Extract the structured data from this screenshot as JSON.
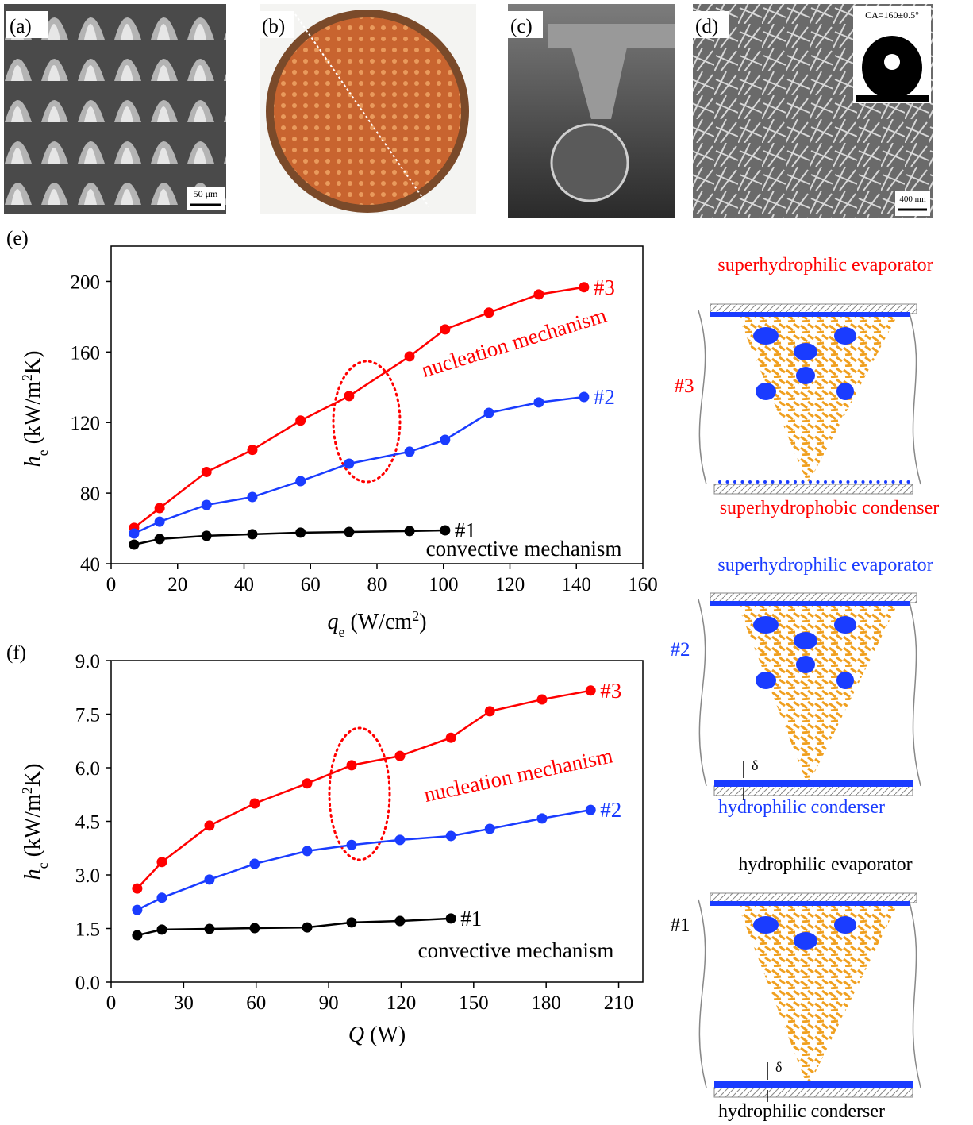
{
  "panels": {
    "labels": [
      "(a)",
      "(b)",
      "(c)",
      "(d)",
      "(e)",
      "(f)"
    ],
    "scale_bars": [
      "50 μm",
      "400 nm"
    ],
    "contact_angle": "CA=160±0.5°"
  },
  "chart_data": [
    {
      "type": "line",
      "ylabel": [
        "h",
        "e",
        " (kW/m",
        "2",
        "K)"
      ],
      "xlabel": [
        "q",
        "e",
        " (W/cm",
        "2",
        ")"
      ],
      "xlim": [
        0,
        160
      ],
      "ylim": [
        40,
        220
      ],
      "xticks": [
        0,
        20,
        40,
        60,
        80,
        100,
        120,
        140,
        160
      ],
      "yticks": [
        40,
        80,
        120,
        160,
        200
      ],
      "series": [
        {
          "name": "#3",
          "color": "#ff0000",
          "x": [
            6.9,
            14.6,
            28.7,
            42.5,
            57,
            71.6,
            89.8,
            100.5,
            113.7,
            128.7,
            142.3
          ],
          "values": [
            60.3,
            71.5,
            92.0,
            104.5,
            121.1,
            135,
            157.5,
            172.8,
            182.3,
            192.6,
            196.7
          ]
        },
        {
          "name": "#2",
          "color": "#1a3cff",
          "x": [
            6.9,
            14.6,
            28.7,
            42.5,
            57,
            71.6,
            89.8,
            100.5,
            113.7,
            128.7,
            142.3
          ],
          "values": [
            57.1,
            63.8,
            73.3,
            77.8,
            86.8,
            96.7,
            103.5,
            110.2,
            125.5,
            131.4,
            134.5
          ]
        },
        {
          "name": "#1",
          "color": "#000000",
          "x": [
            6.9,
            14.6,
            28.7,
            42.5,
            57,
            71.6,
            89.8,
            100.5
          ],
          "values": [
            50.8,
            54,
            55.8,
            56.7,
            57.6,
            58,
            58.5,
            58.9
          ]
        }
      ],
      "annotations": [
        "nucleation mechanism",
        "convective mechanism"
      ]
    },
    {
      "type": "line",
      "ylabel": [
        "h",
        "c",
        " (kW/m",
        "2",
        "K)"
      ],
      "xlabel": [
        "Q",
        "",
        " (W)",
        "",
        ""
      ],
      "xlim": [
        0,
        220
      ],
      "ylim": [
        0,
        9
      ],
      "xticks": [
        0,
        30,
        60,
        90,
        120,
        150,
        180,
        210
      ],
      "yticks": [
        {
          "value": 0,
          "label": "0.0"
        },
        {
          "value": 1.5,
          "label": "1.5"
        },
        {
          "value": 3,
          "label": "3.0"
        },
        {
          "value": 4.5,
          "label": "4.5"
        },
        {
          "value": 6,
          "label": "6.0"
        },
        {
          "value": 7.5,
          "label": "7.5"
        },
        {
          "value": 9,
          "label": "9.0"
        }
      ],
      "series": [
        {
          "name": "#3",
          "color": "#ff0000",
          "x": [
            10.8,
            21,
            40.7,
            59.4,
            81.1,
            99.5,
            119.5,
            140.6,
            156.7,
            178.3,
            198.4
          ],
          "values": [
            2.62,
            3.36,
            4.38,
            5.0,
            5.56,
            6.07,
            6.33,
            6.84,
            7.58,
            7.91,
            8.16
          ]
        },
        {
          "name": "#2",
          "color": "#1a3cff",
          "x": [
            10.8,
            21,
            40.7,
            59.4,
            81.1,
            99.5,
            119.5,
            140.6,
            156.7,
            178.3,
            198.4
          ],
          "values": [
            2.02,
            2.36,
            2.87,
            3.31,
            3.67,
            3.84,
            3.98,
            4.09,
            4.29,
            4.58,
            4.82
          ]
        },
        {
          "name": "#1",
          "color": "#000000",
          "x": [
            10.8,
            21,
            40.7,
            59.4,
            81.1,
            99.5,
            119.5,
            140.6
          ],
          "values": [
            1.31,
            1.47,
            1.49,
            1.51,
            1.53,
            1.67,
            1.71,
            1.78
          ]
        }
      ],
      "annotations": [
        "nucleation mechanism",
        "convective mechanism"
      ]
    }
  ],
  "schematics": [
    {
      "top": "superhydrophilic evaporator",
      "label": "#3",
      "bottom": "superhydrophobic condenser"
    },
    {
      "top": "superhydrophilic evaporator",
      "label": "#2",
      "bottom": "hydrophilic conderser",
      "delta": "δ"
    },
    {
      "top": "hydrophilic evaporator",
      "label": "#1",
      "bottom": "hydrophilic conderser",
      "delta": "δ"
    }
  ]
}
